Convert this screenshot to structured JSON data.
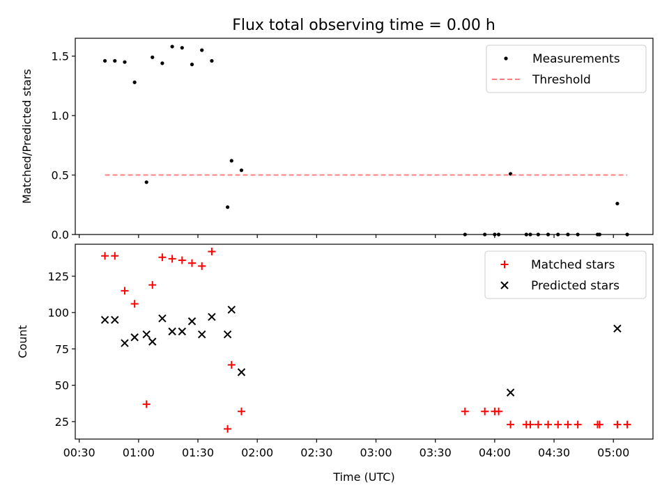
{
  "figure": {
    "title": "Flux total observing time = 0.00 h"
  },
  "chart_data": [
    {
      "type": "scatter",
      "panel": "top",
      "title": "Flux total observing time = 0.00 h",
      "xlabel": "",
      "ylabel": "Matched/Predicted stars",
      "xlim": [
        "00:28",
        "05:20"
      ],
      "ylim": [
        0,
        1.65
      ],
      "yticks": [
        0.0,
        0.5,
        1.0,
        1.5
      ],
      "ytick_labels": [
        "0.0",
        "0.5",
        "1.0",
        "1.5"
      ],
      "legend_position": "upper right",
      "series": [
        {
          "name": "Measurements",
          "kind": "scatter",
          "marker": "dot",
          "color": "#000000",
          "points": [
            [
              "00:43",
              1.46
            ],
            [
              "00:48",
              1.46
            ],
            [
              "00:53",
              1.45
            ],
            [
              "00:58",
              1.28
            ],
            [
              "01:04",
              0.44
            ],
            [
              "01:07",
              1.49
            ],
            [
              "01:12",
              1.44
            ],
            [
              "01:17",
              1.58
            ],
            [
              "01:22",
              1.57
            ],
            [
              "01:27",
              1.43
            ],
            [
              "01:32",
              1.55
            ],
            [
              "01:37",
              1.46
            ],
            [
              "01:45",
              0.23
            ],
            [
              "01:47",
              0.62
            ],
            [
              "01:52",
              0.54
            ],
            [
              "03:45",
              0.0
            ],
            [
              "03:55",
              0.0
            ],
            [
              "04:00",
              0.0
            ],
            [
              "04:02",
              0.0
            ],
            [
              "04:08",
              0.51
            ],
            [
              "04:16",
              0.0
            ],
            [
              "04:18",
              0.0
            ],
            [
              "04:22",
              0.0
            ],
            [
              "04:27",
              0.0
            ],
            [
              "04:32",
              0.0
            ],
            [
              "04:37",
              0.0
            ],
            [
              "04:42",
              0.0
            ],
            [
              "04:52",
              0.0
            ],
            [
              "04:53",
              0.0
            ],
            [
              "05:02",
              0.26
            ],
            [
              "05:07",
              0.0
            ]
          ]
        },
        {
          "name": "Threshold",
          "kind": "line",
          "style": "dashed",
          "color": "#ff8080",
          "points": [
            [
              "00:43",
              0.5
            ],
            [
              "05:07",
              0.5
            ]
          ]
        }
      ]
    },
    {
      "type": "scatter",
      "panel": "bottom",
      "xlabel": "Time (UTC)",
      "ylabel": "Count",
      "xlim": [
        "00:28",
        "05:20"
      ],
      "ylim": [
        13,
        147
      ],
      "xticks": [
        "00:30",
        "01:00",
        "01:30",
        "02:00",
        "02:30",
        "03:00",
        "03:30",
        "04:00",
        "04:30",
        "05:00"
      ],
      "yticks": [
        25,
        50,
        75,
        100,
        125
      ],
      "ytick_labels": [
        "25",
        "50",
        "75",
        "100",
        "125"
      ],
      "legend_position": "upper right",
      "series": [
        {
          "name": "Matched stars",
          "kind": "scatter",
          "marker": "plus",
          "color": "#ff0000",
          "points": [
            [
              "00:43",
              139
            ],
            [
              "00:48",
              139
            ],
            [
              "00:53",
              115
            ],
            [
              "00:58",
              106
            ],
            [
              "01:04",
              37
            ],
            [
              "01:07",
              119
            ],
            [
              "01:12",
              138
            ],
            [
              "01:17",
              137
            ],
            [
              "01:22",
              136
            ],
            [
              "01:27",
              134
            ],
            [
              "01:32",
              132
            ],
            [
              "01:37",
              142
            ],
            [
              "01:45",
              20
            ],
            [
              "01:47",
              64
            ],
            [
              "01:52",
              32
            ],
            [
              "03:45",
              32
            ],
            [
              "03:55",
              32
            ],
            [
              "04:00",
              32
            ],
            [
              "04:02",
              32
            ],
            [
              "04:08",
              23
            ],
            [
              "04:16",
              23
            ],
            [
              "04:18",
              23
            ],
            [
              "04:22",
              23
            ],
            [
              "04:27",
              23
            ],
            [
              "04:32",
              23
            ],
            [
              "04:37",
              23
            ],
            [
              "04:42",
              23
            ],
            [
              "04:52",
              23
            ],
            [
              "04:53",
              23
            ],
            [
              "05:02",
              23
            ],
            [
              "05:07",
              23
            ]
          ]
        },
        {
          "name": "Predicted stars",
          "kind": "scatter",
          "marker": "x",
          "color": "#000000",
          "points": [
            [
              "00:43",
              95
            ],
            [
              "00:48",
              95
            ],
            [
              "00:53",
              79
            ],
            [
              "00:58",
              83
            ],
            [
              "01:04",
              85
            ],
            [
              "01:07",
              80
            ],
            [
              "01:12",
              96
            ],
            [
              "01:17",
              87
            ],
            [
              "01:22",
              87
            ],
            [
              "01:27",
              94
            ],
            [
              "01:32",
              85
            ],
            [
              "01:37",
              97
            ],
            [
              "01:45",
              85
            ],
            [
              "01:47",
              102
            ],
            [
              "01:52",
              59
            ],
            [
              "04:08",
              45
            ],
            [
              "05:02",
              89
            ]
          ]
        }
      ]
    }
  ]
}
